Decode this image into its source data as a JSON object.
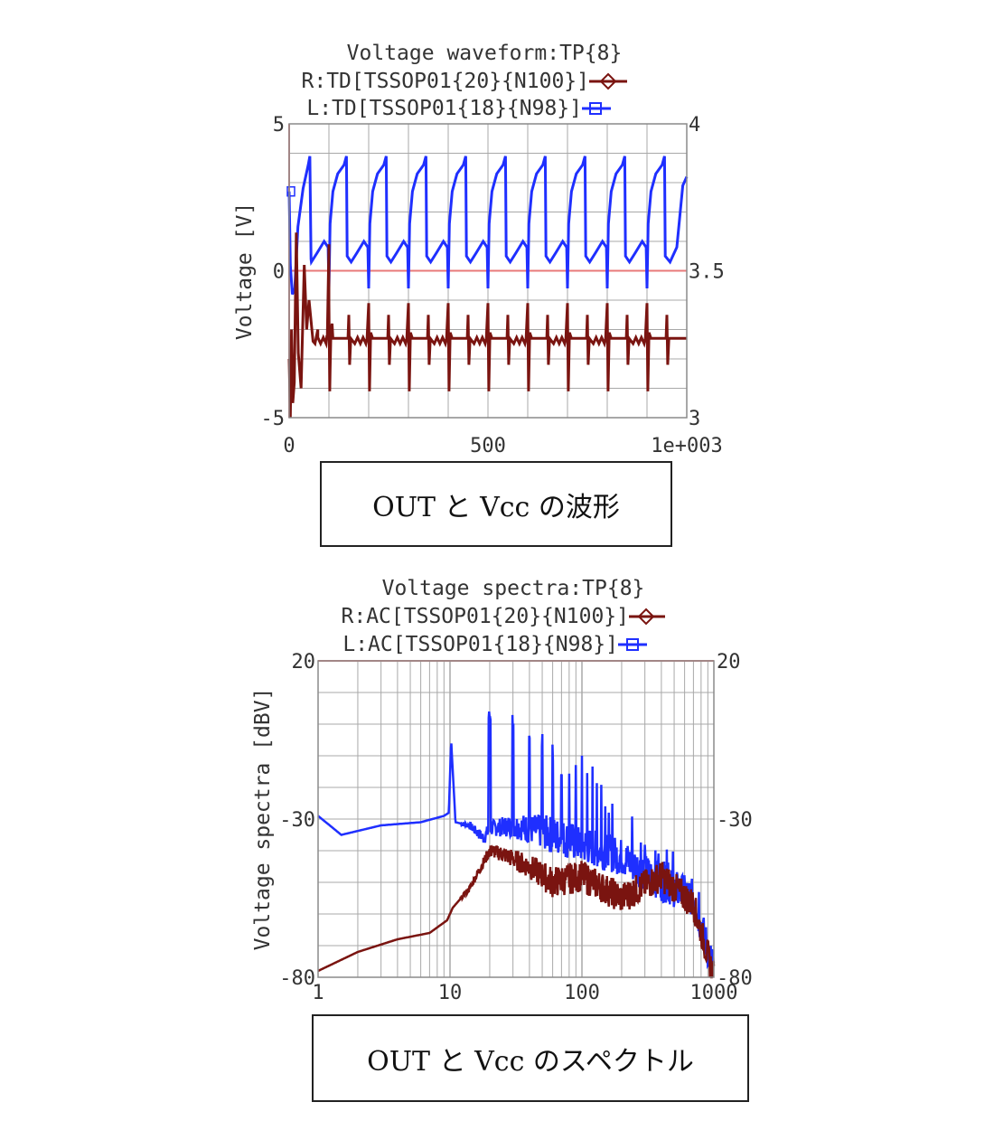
{
  "colors": {
    "red_series": "#7a1410",
    "blue_series": "#1f2fff",
    "grid": "#a8a8a8",
    "ref_line": "#e87a7a"
  },
  "chart_data": [
    {
      "type": "line",
      "title": "Voltage waveform:TP{8}",
      "legend": [
        {
          "label": "R:TD[TSSOP01{20}{N100}]",
          "marker": "diamond",
          "color": "#7a1410"
        },
        {
          "label": "L:TD[TSSOP01{18}{N98}]",
          "marker": "square",
          "color": "#1f2fff"
        }
      ],
      "ylabel": "Voltage [V]",
      "xlim": [
        0,
        1000
      ],
      "ylim_left": [
        -5,
        5
      ],
      "ylim_right": [
        3,
        4
      ],
      "x_ticks": [
        "0",
        "500",
        "1e+003"
      ],
      "y_ticks_left": [
        "5",
        "0",
        "-5"
      ],
      "y_ticks_right": [
        "4",
        "3.5",
        "3"
      ],
      "grid": true,
      "series": [
        {
          "name": "L:TD[TSSOP01{18}{N98}]",
          "axis": "left",
          "color": "#1f2fff",
          "pattern": "periodic_square",
          "period": 100,
          "high": 4.1,
          "low": 0.0,
          "start_x": 0,
          "start_value": 2.7
        },
        {
          "name": "R:TD[TSSOP01{20}{N100}]",
          "axis": "left",
          "color": "#7a1410",
          "pattern": "periodic_spikes",
          "period": 100,
          "baseline": -2.3,
          "spike_up": -1.1,
          "spike_down": -4.1,
          "start_value": -5
        }
      ]
    },
    {
      "type": "line",
      "title": "Voltage spectra:TP{8}",
      "legend": [
        {
          "label": "R:AC[TSSOP01{20}{N100}]",
          "marker": "diamond",
          "color": "#7a1410"
        },
        {
          "label": "L:AC[TSSOP01{18}{N98}]",
          "marker": "square",
          "color": "#1f2fff"
        }
      ],
      "ylabel": "Voltage spectra [dBV]",
      "xscale": "log",
      "xlim": [
        1,
        1000
      ],
      "ylim": [
        -80,
        20
      ],
      "x_ticks": [
        "1",
        "10",
        "100",
        "1000"
      ],
      "y_ticks_left": [
        "20",
        "-30",
        "-80"
      ],
      "y_ticks_right": [
        "20",
        "-30",
        "-80"
      ],
      "grid": true,
      "series": [
        {
          "name": "L:AC[TSSOP01{18}{N98}]",
          "color": "#1f2fff",
          "x": [
            1,
            1.5,
            3,
            6,
            9,
            9.8,
            10.2,
            11,
            14,
            18,
            20,
            30,
            50,
            100,
            200,
            400,
            700,
            1000
          ],
          "y": [
            -29,
            -35,
            -32,
            -31,
            -29,
            -28,
            -5,
            -31,
            -32,
            -36,
            -33,
            -32,
            -34,
            -38,
            -42,
            -50,
            -55,
            -78
          ]
        },
        {
          "name": "R:AC[TSSOP01{20}{N100}]",
          "color": "#7a1410",
          "x": [
            1,
            2,
            4,
            7,
            9.5,
            10.5,
            14,
            20,
            25,
            40,
            60,
            100,
            200,
            400,
            700,
            1000
          ],
          "y": [
            -78,
            -72,
            -68,
            -66,
            -62,
            -58,
            -52,
            -40,
            -41,
            -45,
            -50,
            -48,
            -55,
            -48,
            -57,
            -80
          ]
        }
      ]
    }
  ],
  "captions": {
    "waveform": "OUT と Vcc の波形",
    "spectra": "OUT と Vcc のスペクトル"
  }
}
